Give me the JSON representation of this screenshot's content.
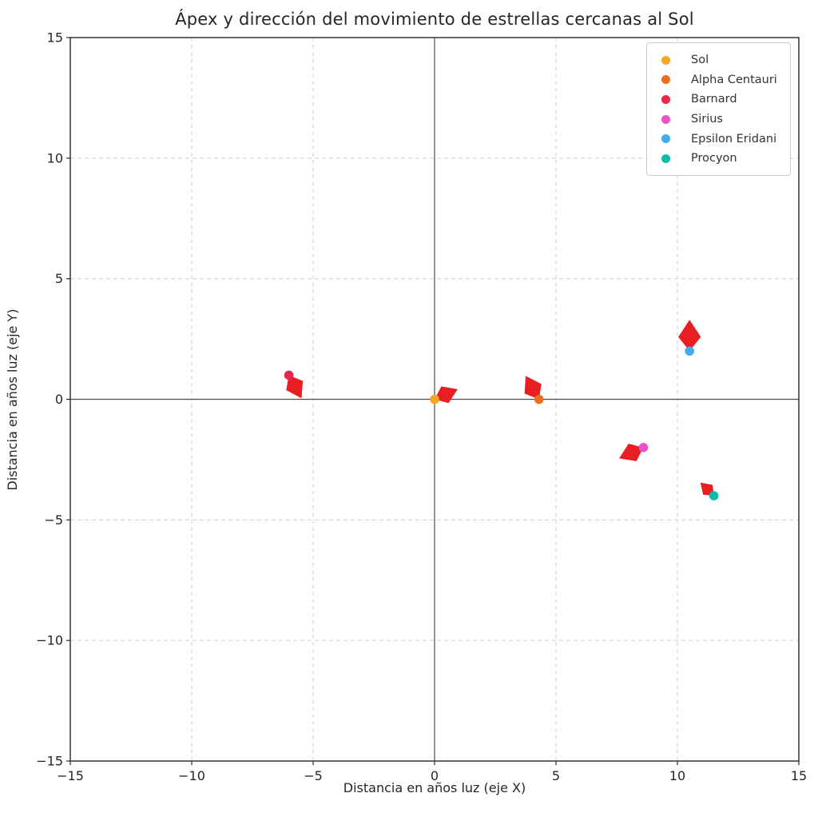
{
  "chart_data": {
    "type": "scatter",
    "title": "Ápex y dirección del movimiento de estrellas cercanas al Sol",
    "xlabel": "Distancia en años luz (eje X)",
    "ylabel": "Distancia en años luz (eje Y)",
    "xlim": [
      -15,
      15
    ],
    "ylim": [
      -15,
      15
    ],
    "xticks": [
      -15,
      -10,
      -5,
      0,
      5,
      10,
      15
    ],
    "yticks": [
      -15,
      -10,
      -5,
      0,
      5,
      10,
      15
    ],
    "grid": true,
    "grid_style": "dashed",
    "grid_color": "#cfcfcf",
    "zero_axis_color": "#4d4d4d",
    "spine_color": "#262626",
    "arrow_color": "#E81E23",
    "legend_position": "upper-right",
    "series": [
      {
        "name": "Sol",
        "x": 0,
        "y": 0,
        "color": "#F5A623",
        "velocity": [
          0.95,
          0.42
        ]
      },
      {
        "name": "Alpha Centauri",
        "x": 4.3,
        "y": 0,
        "color": "#ED6D1F",
        "velocity": [
          -0.55,
          0.97
        ]
      },
      {
        "name": "Barnard",
        "x": -6,
        "y": 1,
        "color": "#E8274B",
        "velocity": [
          0.52,
          -0.96
        ]
      },
      {
        "name": "Sirius",
        "x": 8.6,
        "y": -2,
        "color": "#EC52C5",
        "velocity": [
          -1.0,
          -0.45
        ]
      },
      {
        "name": "Epsilon Eridani",
        "x": 10.5,
        "y": 2,
        "color": "#41ACE8",
        "velocity": [
          0.0,
          1.3
        ]
      },
      {
        "name": "Procyon",
        "x": 11.5,
        "y": -4,
        "color": "#10BCA8",
        "velocity": [
          -0.55,
          0.55
        ]
      }
    ]
  }
}
